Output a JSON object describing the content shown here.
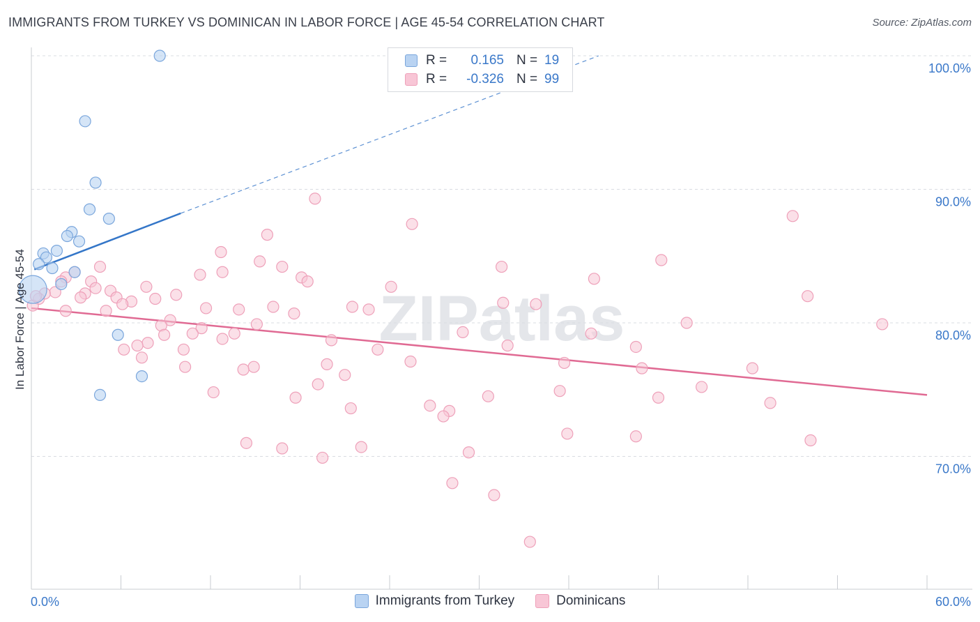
{
  "header": {
    "title": "IMMIGRANTS FROM TURKEY VS DOMINICAN IN LABOR FORCE | AGE 45-54 CORRELATION CHART",
    "source": "Source: ZipAtlas.com"
  },
  "watermark": "ZIPatlas",
  "legend": {
    "r_label": "R =",
    "n_label": "N =",
    "rows": [
      {
        "r_value": "0.165",
        "n_value": "19"
      },
      {
        "r_value": "-0.326",
        "n_value": "99"
      }
    ]
  },
  "colors": {
    "blue_fill": "#b9d3f2",
    "blue_stroke": "#7aa6dc",
    "blue_line": "#3476c8",
    "pink_fill": "#f8c6d6",
    "pink_stroke": "#eea0b9",
    "pink_line": "#e06a93",
    "axis_label": "#3a78c9"
  },
  "chart_data": {
    "type": "scatter",
    "title": "IMMIGRANTS FROM TURKEY VS DOMINICAN IN LABOR FORCE | AGE 45-54 CORRELATION CHART",
    "xlabel": "",
    "ylabel": "In Labor Force | Age 45-54",
    "xlim": [
      0,
      60
    ],
    "ylim": [
      60,
      100
    ],
    "x_tick_labels": [
      "0.0%",
      "60.0%"
    ],
    "y_ticks": [
      70,
      80,
      90,
      100
    ],
    "y_tick_labels": [
      "70.0%",
      "80.0%",
      "90.0%",
      "100.0%"
    ],
    "grid": true,
    "legend_position": "top-center and bottom",
    "series": [
      {
        "name": "Immigrants from Turkey",
        "r": 0.165,
        "n": 19,
        "trend": {
          "x0": 0.2,
          "y0": 84.0,
          "x1": 10.0,
          "y1": 88.2,
          "dashed_to_x": 38.0,
          "dashed_to_y": 100.0
        },
        "points": [
          {
            "x": 8.6,
            "y": 100.0
          },
          {
            "x": 3.6,
            "y": 95.1
          },
          {
            "x": 4.3,
            "y": 90.5
          },
          {
            "x": 3.9,
            "y": 88.5
          },
          {
            "x": 5.2,
            "y": 87.8
          },
          {
            "x": 2.7,
            "y": 86.8
          },
          {
            "x": 2.4,
            "y": 86.5
          },
          {
            "x": 3.2,
            "y": 86.1
          },
          {
            "x": 1.7,
            "y": 85.4
          },
          {
            "x": 0.8,
            "y": 85.2
          },
          {
            "x": 1.0,
            "y": 84.9
          },
          {
            "x": 0.5,
            "y": 84.4
          },
          {
            "x": 1.4,
            "y": 84.1
          },
          {
            "x": 2.9,
            "y": 83.8
          },
          {
            "x": 2.0,
            "y": 82.9
          },
          {
            "x": 0.1,
            "y": 82.5,
            "large": true
          },
          {
            "x": 5.8,
            "y": 79.1
          },
          {
            "x": 7.4,
            "y": 76.0
          },
          {
            "x": 4.6,
            "y": 74.6
          }
        ]
      },
      {
        "name": "Dominicans",
        "r": -0.326,
        "n": 99,
        "trend": {
          "x0": 0.0,
          "y0": 81.1,
          "x1": 60.0,
          "y1": 74.6
        },
        "points": [
          {
            "x": 19.0,
            "y": 89.3
          },
          {
            "x": 25.5,
            "y": 87.4
          },
          {
            "x": 51.0,
            "y": 88.0
          },
          {
            "x": 15.8,
            "y": 86.6
          },
          {
            "x": 12.7,
            "y": 85.3
          },
          {
            "x": 15.3,
            "y": 84.6
          },
          {
            "x": 42.2,
            "y": 84.7
          },
          {
            "x": 4.6,
            "y": 84.2
          },
          {
            "x": 16.8,
            "y": 84.2
          },
          {
            "x": 31.5,
            "y": 84.2
          },
          {
            "x": 12.8,
            "y": 83.8
          },
          {
            "x": 2.9,
            "y": 83.8
          },
          {
            "x": 11.3,
            "y": 83.6
          },
          {
            "x": 18.1,
            "y": 83.4
          },
          {
            "x": 2.3,
            "y": 83.4
          },
          {
            "x": 37.7,
            "y": 83.3
          },
          {
            "x": 18.5,
            "y": 83.1
          },
          {
            "x": 2.0,
            "y": 83.1
          },
          {
            "x": 4.0,
            "y": 83.1
          },
          {
            "x": 24.1,
            "y": 82.7
          },
          {
            "x": 7.7,
            "y": 82.7
          },
          {
            "x": 4.3,
            "y": 82.6
          },
          {
            "x": 5.3,
            "y": 82.4
          },
          {
            "x": 1.6,
            "y": 82.3
          },
          {
            "x": 0.9,
            "y": 82.2
          },
          {
            "x": 3.6,
            "y": 82.2
          },
          {
            "x": 9.7,
            "y": 82.1
          },
          {
            "x": 52.0,
            "y": 82.0
          },
          {
            "x": 5.7,
            "y": 81.9
          },
          {
            "x": 3.3,
            "y": 81.9
          },
          {
            "x": 0.5,
            "y": 81.8
          },
          {
            "x": 8.3,
            "y": 81.8
          },
          {
            "x": 6.7,
            "y": 81.6
          },
          {
            "x": 31.6,
            "y": 81.5
          },
          {
            "x": 33.8,
            "y": 81.4
          },
          {
            "x": 6.1,
            "y": 81.4
          },
          {
            "x": 16.2,
            "y": 81.2
          },
          {
            "x": 21.5,
            "y": 81.2
          },
          {
            "x": 11.7,
            "y": 81.1
          },
          {
            "x": 13.9,
            "y": 81.0
          },
          {
            "x": 22.6,
            "y": 81.0
          },
          {
            "x": 5.0,
            "y": 80.9
          },
          {
            "x": 2.3,
            "y": 80.9
          },
          {
            "x": 0.1,
            "y": 81.3
          },
          {
            "x": 17.6,
            "y": 80.7
          },
          {
            "x": 9.3,
            "y": 80.2
          },
          {
            "x": 15.1,
            "y": 79.9
          },
          {
            "x": 43.9,
            "y": 80.0
          },
          {
            "x": 57.0,
            "y": 79.9
          },
          {
            "x": 8.7,
            "y": 79.8
          },
          {
            "x": 11.4,
            "y": 79.6
          },
          {
            "x": 28.9,
            "y": 79.3
          },
          {
            "x": 37.5,
            "y": 79.2
          },
          {
            "x": 10.8,
            "y": 79.2
          },
          {
            "x": 13.6,
            "y": 79.2
          },
          {
            "x": 8.9,
            "y": 79.1
          },
          {
            "x": 12.8,
            "y": 78.8
          },
          {
            "x": 20.1,
            "y": 78.7
          },
          {
            "x": 7.8,
            "y": 78.5
          },
          {
            "x": 7.1,
            "y": 78.3
          },
          {
            "x": 31.9,
            "y": 78.3
          },
          {
            "x": 40.5,
            "y": 78.2
          },
          {
            "x": 6.2,
            "y": 78.0
          },
          {
            "x": 10.2,
            "y": 78.0
          },
          {
            "x": 23.2,
            "y": 78.0
          },
          {
            "x": 7.4,
            "y": 77.4
          },
          {
            "x": 25.4,
            "y": 77.1
          },
          {
            "x": 35.7,
            "y": 77.0
          },
          {
            "x": 19.8,
            "y": 76.9
          },
          {
            "x": 10.3,
            "y": 76.7
          },
          {
            "x": 14.9,
            "y": 76.7
          },
          {
            "x": 14.2,
            "y": 76.5
          },
          {
            "x": 40.9,
            "y": 76.6
          },
          {
            "x": 48.3,
            "y": 76.6
          },
          {
            "x": 21.0,
            "y": 76.1
          },
          {
            "x": 19.2,
            "y": 75.4
          },
          {
            "x": 44.9,
            "y": 75.2
          },
          {
            "x": 12.2,
            "y": 74.8
          },
          {
            "x": 35.4,
            "y": 74.9
          },
          {
            "x": 17.7,
            "y": 74.4
          },
          {
            "x": 30.6,
            "y": 74.5
          },
          {
            "x": 42.0,
            "y": 74.4
          },
          {
            "x": 49.5,
            "y": 74.0
          },
          {
            "x": 26.7,
            "y": 73.8
          },
          {
            "x": 21.4,
            "y": 73.6
          },
          {
            "x": 28.0,
            "y": 73.4
          },
          {
            "x": 27.6,
            "y": 73.0
          },
          {
            "x": 35.9,
            "y": 71.7
          },
          {
            "x": 40.5,
            "y": 71.5
          },
          {
            "x": 52.2,
            "y": 71.2
          },
          {
            "x": 14.4,
            "y": 71.0
          },
          {
            "x": 16.8,
            "y": 70.6
          },
          {
            "x": 22.1,
            "y": 70.7
          },
          {
            "x": 19.5,
            "y": 69.9
          },
          {
            "x": 29.3,
            "y": 70.3
          },
          {
            "x": 28.2,
            "y": 68.0
          },
          {
            "x": 31.0,
            "y": 67.1
          },
          {
            "x": 33.4,
            "y": 63.6
          },
          {
            "x": 0.3,
            "y": 82.0
          }
        ]
      }
    ]
  }
}
